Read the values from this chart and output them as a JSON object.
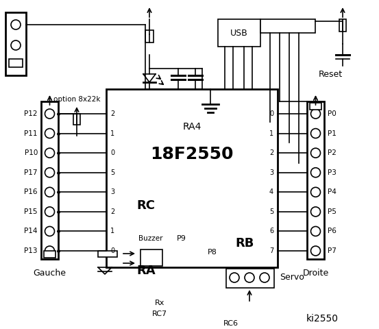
{
  "bg_color": "#ffffff",
  "title": "ki2550",
  "chip_label": "18F2550",
  "chip_sublabel": "RA4",
  "rc_label": "RC",
  "ra_label": "RA",
  "rb_label": "RB",
  "rc_pins": [
    "2",
    "1",
    "0",
    "5",
    "3",
    "2",
    "1",
    "0"
  ],
  "rb_pins": [
    "0",
    "1",
    "2",
    "3",
    "4",
    "5",
    "6",
    "7"
  ],
  "left_labels": [
    "P12",
    "P11",
    "P10",
    "P17",
    "P16",
    "P15",
    "P14",
    "P13"
  ],
  "right_labels": [
    "P0",
    "P1",
    "P2",
    "P3",
    "P4",
    "P5",
    "P6",
    "P7"
  ],
  "rx_label": "Rx",
  "rc7_label": "RC7",
  "rc6_label": "RC6",
  "usb_label": "USB",
  "reset_label": "Reset",
  "option_label": "option 8x22k",
  "gauche_label": "Gauche",
  "droite_label": "Droite",
  "buzzer_label": "Buzzer",
  "p9_label": "P9",
  "p8_label": "P8",
  "servo_label": "Servo"
}
